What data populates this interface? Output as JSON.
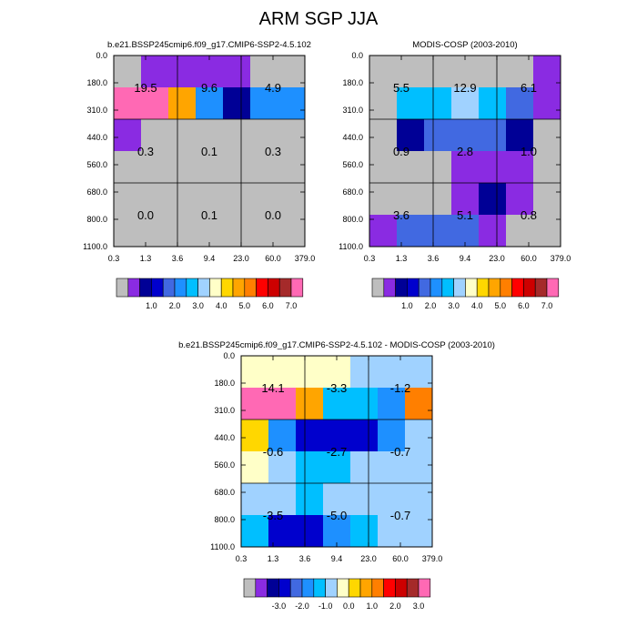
{
  "figure": {
    "title": "ARM SGP JJA"
  },
  "chart_data": [
    {
      "type": "heatmap",
      "title": "b.e21.BSSP245cmip6.f09_g17.CMIP6-SSP2-4.5.102",
      "x_ticks": [
        "0.3",
        "1.3",
        "3.6",
        "9.4",
        "23.0",
        "60.0",
        "379.0"
      ],
      "y_ticks": [
        "0.0",
        "180.0",
        "310.0",
        "440.0",
        "560.0",
        "680.0",
        "800.0",
        "1100.0"
      ],
      "cell_colors": [
        [
          "#bebebe",
          "#8a2be2",
          "#8a2be2",
          "#8a2be2",
          "#8a2be2",
          "#bebebe",
          "#bebebe"
        ],
        [
          "#ff69b4",
          "#ff69b4",
          "#ffa500",
          "#1e90ff",
          "#000096",
          "#1e90ff",
          "#1e90ff"
        ],
        [
          "#8a2be2",
          "#bebebe",
          "#bebebe",
          "#bebebe",
          "#bebebe",
          "#bebebe",
          "#bebebe"
        ],
        [
          "#bebebe",
          "#bebebe",
          "#bebebe",
          "#bebebe",
          "#bebebe",
          "#bebebe",
          "#bebebe"
        ],
        [
          "#bebebe",
          "#bebebe",
          "#bebebe",
          "#bebebe",
          "#bebebe",
          "#bebebe",
          "#bebebe"
        ],
        [
          "#bebebe",
          "#bebebe",
          "#bebebe",
          "#bebebe",
          "#bebebe",
          "#bebebe",
          "#bebebe"
        ]
      ],
      "cell_labels": [
        [
          "19.5",
          "9.6",
          "4.9"
        ],
        [
          "0.3",
          "0.1",
          "0.3"
        ],
        [
          "0.0",
          "0.1",
          "0.0"
        ]
      ],
      "colorbar": {
        "colors": [
          "#bebebe",
          "#8a2be2",
          "#000096",
          "#0000cd",
          "#4169e1",
          "#1e90ff",
          "#00bfff",
          "#a0d2ff",
          "#ffffc8",
          "#ffd700",
          "#ffa500",
          "#ff7f00",
          "#ff0000",
          "#cd0000",
          "#a52a2a",
          "#ff69b4"
        ],
        "labels": [
          "1.0",
          "2.0",
          "3.0",
          "4.0",
          "5.0",
          "6.0",
          "7.0"
        ]
      }
    },
    {
      "type": "heatmap",
      "title": "MODIS-COSP (2003-2010)",
      "x_ticks": [
        "0.3",
        "1.3",
        "3.6",
        "9.4",
        "23.0",
        "60.0",
        "379.0"
      ],
      "y_ticks": [
        "0.0",
        "180.0",
        "310.0",
        "440.0",
        "560.0",
        "680.0",
        "800.0",
        "1100.0"
      ],
      "cell_colors": [
        [
          "#bebebe",
          "#bebebe",
          "#bebebe",
          "#bebebe",
          "#bebebe",
          "#bebebe",
          "#8a2be2"
        ],
        [
          "#bebebe",
          "#00bfff",
          "#00bfff",
          "#a0d2ff",
          "#00bfff",
          "#4169e1",
          "#8a2be2"
        ],
        [
          "#bebebe",
          "#000096",
          "#4169e1",
          "#4169e1",
          "#4169e1",
          "#000096",
          "#bebebe"
        ],
        [
          "#bebebe",
          "#bebebe",
          "#bebebe",
          "#8a2be2",
          "#8a2be2",
          "#8a2be2",
          "#bebebe"
        ],
        [
          "#bebebe",
          "#bebebe",
          "#bebebe",
          "#8a2be2",
          "#000096",
          "#8a2be2",
          "#bebebe"
        ],
        [
          "#8a2be2",
          "#4169e1",
          "#4169e1",
          "#4169e1",
          "#8a2be2",
          "#bebebe",
          "#bebebe"
        ]
      ],
      "cell_labels": [
        [
          "5.5",
          "12.9",
          "6.1"
        ],
        [
          "0.9",
          "2.8",
          "1.0"
        ],
        [
          "3.6",
          "5.1",
          "0.8"
        ]
      ],
      "colorbar": {
        "colors": [
          "#bebebe",
          "#8a2be2",
          "#000096",
          "#0000cd",
          "#4169e1",
          "#1e90ff",
          "#00bfff",
          "#a0d2ff",
          "#ffffc8",
          "#ffd700",
          "#ffa500",
          "#ff7f00",
          "#ff0000",
          "#cd0000",
          "#a52a2a",
          "#ff69b4"
        ],
        "labels": [
          "1.0",
          "2.0",
          "3.0",
          "4.0",
          "5.0",
          "6.0",
          "7.0"
        ]
      }
    },
    {
      "type": "heatmap",
      "title": "b.e21.BSSP245cmip6.f09_g17.CMIP6-SSP2-4.5.102 - MODIS-COSP (2003-2010)",
      "x_ticks": [
        "0.3",
        "1.3",
        "3.6",
        "9.4",
        "23.0",
        "60.0",
        "379.0"
      ],
      "y_ticks": [
        "0.0",
        "180.0",
        "310.0",
        "440.0",
        "560.0",
        "680.0",
        "800.0",
        "1100.0"
      ],
      "cell_colors": [
        [
          "#ffffc8",
          "#ffffc8",
          "#ffffc8",
          "#ffffc8",
          "#a0d2ff",
          "#a0d2ff",
          "#a0d2ff"
        ],
        [
          "#ff69b4",
          "#ff69b4",
          "#ffa500",
          "#00bfff",
          "#00bfff",
          "#1e90ff",
          "#ff7f00"
        ],
        [
          "#ffd700",
          "#1e90ff",
          "#0000cd",
          "#0000cd",
          "#0000cd",
          "#1e90ff",
          "#a0d2ff"
        ],
        [
          "#ffffc8",
          "#a0d2ff",
          "#00bfff",
          "#00bfff",
          "#a0d2ff",
          "#a0d2ff",
          "#a0d2ff"
        ],
        [
          "#a0d2ff",
          "#a0d2ff",
          "#00bfff",
          "#a0d2ff",
          "#a0d2ff",
          "#a0d2ff",
          "#a0d2ff"
        ],
        [
          "#00bfff",
          "#0000cd",
          "#0000cd",
          "#1e90ff",
          "#00bfff",
          "#a0d2ff",
          "#a0d2ff"
        ]
      ],
      "cell_labels": [
        [
          "14.1",
          "-3.3",
          "-1.2"
        ],
        [
          "-0.6",
          "-2.7",
          "-0.7"
        ],
        [
          "-3.5",
          "-5.0",
          "-0.7"
        ]
      ],
      "colorbar": {
        "colors": [
          "#bebebe",
          "#8a2be2",
          "#000096",
          "#0000cd",
          "#4169e1",
          "#1e90ff",
          "#00bfff",
          "#a0d2ff",
          "#ffffc8",
          "#ffd700",
          "#ffa500",
          "#ff7f00",
          "#ff0000",
          "#cd0000",
          "#a52a2a",
          "#ff69b4"
        ],
        "labels": [
          "-3.0",
          "-2.0",
          "-1.0",
          "0.0",
          "1.0",
          "2.0",
          "3.0"
        ]
      }
    }
  ]
}
